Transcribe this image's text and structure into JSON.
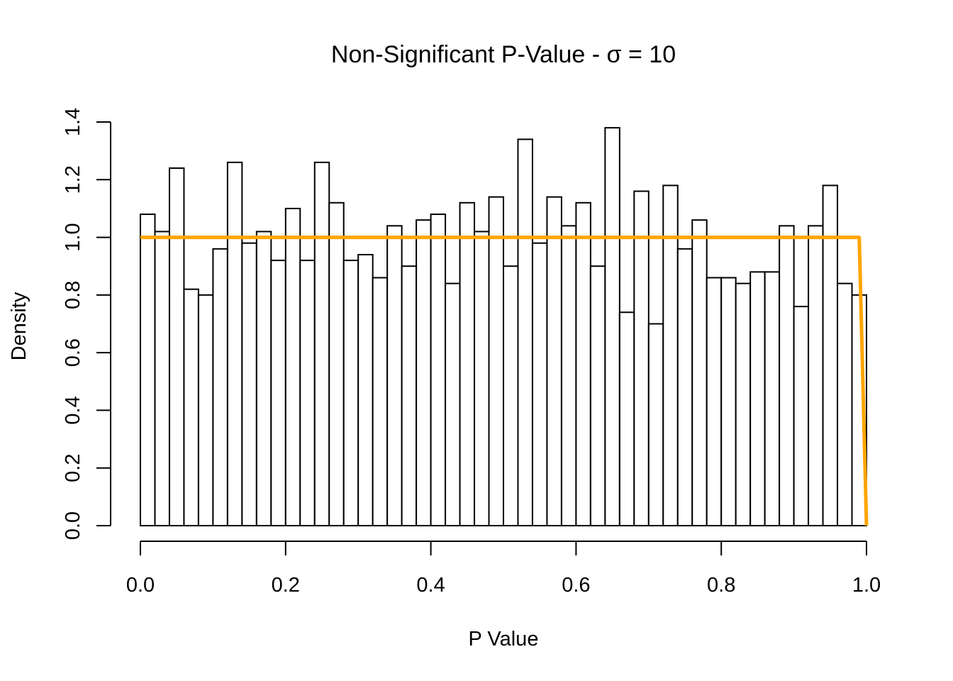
{
  "chart_data": {
    "type": "bar",
    "title": "Non-Significant P-Value - σ = 10",
    "xlabel": "P Value",
    "ylabel": "Density",
    "xlim": [
      0,
      1
    ],
    "ylim": [
      0,
      1.4
    ],
    "x_ticks": [
      "0.0",
      "0.2",
      "0.4",
      "0.6",
      "0.8",
      "1.0"
    ],
    "y_ticks": [
      "0.0",
      "0.2",
      "0.4",
      "0.6",
      "0.8",
      "1.0",
      "1.2",
      "1.4"
    ],
    "bin_width": 0.02,
    "bin_starts": [
      0.0,
      0.02,
      0.04,
      0.06,
      0.08,
      0.1,
      0.12,
      0.14,
      0.16,
      0.18,
      0.2,
      0.22,
      0.24,
      0.26,
      0.28,
      0.3,
      0.32,
      0.34,
      0.36,
      0.38,
      0.4,
      0.42,
      0.44,
      0.46,
      0.48,
      0.5,
      0.52,
      0.54,
      0.56,
      0.58,
      0.6,
      0.62,
      0.64,
      0.66,
      0.68,
      0.7,
      0.72,
      0.74,
      0.76,
      0.78,
      0.8,
      0.82,
      0.84,
      0.86,
      0.88,
      0.9,
      0.92,
      0.94,
      0.96,
      0.98
    ],
    "values": [
      1.08,
      1.02,
      1.24,
      0.82,
      0.8,
      0.96,
      1.26,
      0.98,
      1.02,
      0.92,
      1.1,
      0.92,
      1.26,
      1.12,
      0.92,
      0.94,
      0.86,
      1.04,
      0.9,
      1.06,
      1.08,
      0.84,
      1.12,
      1.02,
      1.14,
      0.9,
      1.34,
      0.98,
      1.14,
      1.04,
      1.12,
      0.9,
      1.38,
      0.74,
      1.16,
      0.7,
      1.18,
      0.96,
      1.06,
      0.86,
      0.86,
      0.84,
      0.88,
      0.88,
      1.04,
      0.76,
      1.04,
      1.18,
      0.84,
      0.8
    ],
    "overlay_line": {
      "color": "#FFA500",
      "x": [
        0.0,
        0.99,
        1.0
      ],
      "y": [
        1.0,
        1.0,
        0.0
      ]
    },
    "grid": false,
    "legend": "none"
  }
}
